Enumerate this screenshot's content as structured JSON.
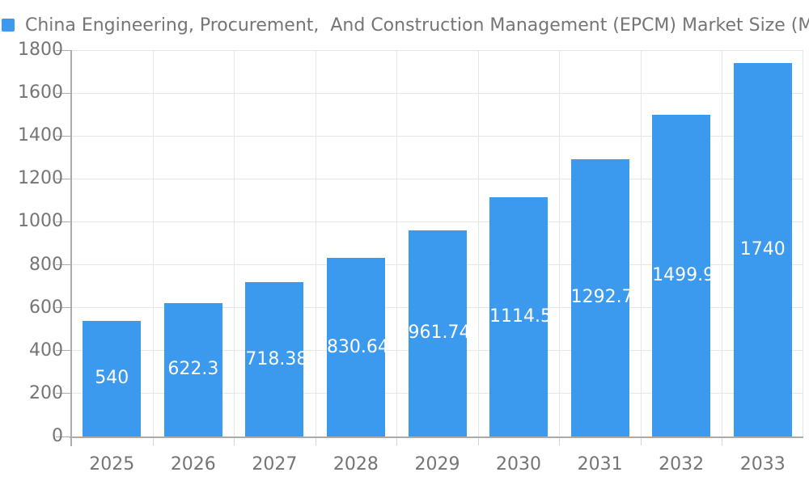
{
  "legend": {
    "swatch_color": "#3B99EE"
  },
  "chart_data": {
    "type": "bar",
    "title": "China Engineering, Procurement,  And Construction Management (EPCM) Market Size (M",
    "categories": [
      "2025",
      "2026",
      "2027",
      "2028",
      "2029",
      "2030",
      "2031",
      "2032",
      "2033"
    ],
    "values": [
      540,
      622.3,
      718.38,
      830.64,
      961.74,
      1114.5,
      1292.7,
      1499.9,
      1740
    ],
    "bar_labels": [
      "540",
      "622.3",
      "718.38",
      "830.64",
      "961.74",
      "1114.5",
      "1292.7",
      "1499.9",
      "1740"
    ],
    "xlabel": "",
    "ylabel": "",
    "ylim": [
      0,
      1800
    ],
    "ytick_step": 200,
    "yticks": [
      0,
      200,
      400,
      600,
      800,
      1000,
      1200,
      1400,
      1600,
      1800
    ],
    "grid": true,
    "legend_position": "top-left",
    "colors": {
      "bar": "#3B99EE",
      "bar_label_text": "#FFFFFF",
      "axis_text": "#757575",
      "axis_line": "#ABABAB",
      "gridline": "#E6E6E6",
      "minor_tick": "#D4D4D4",
      "background": "#FFFFFF"
    }
  }
}
